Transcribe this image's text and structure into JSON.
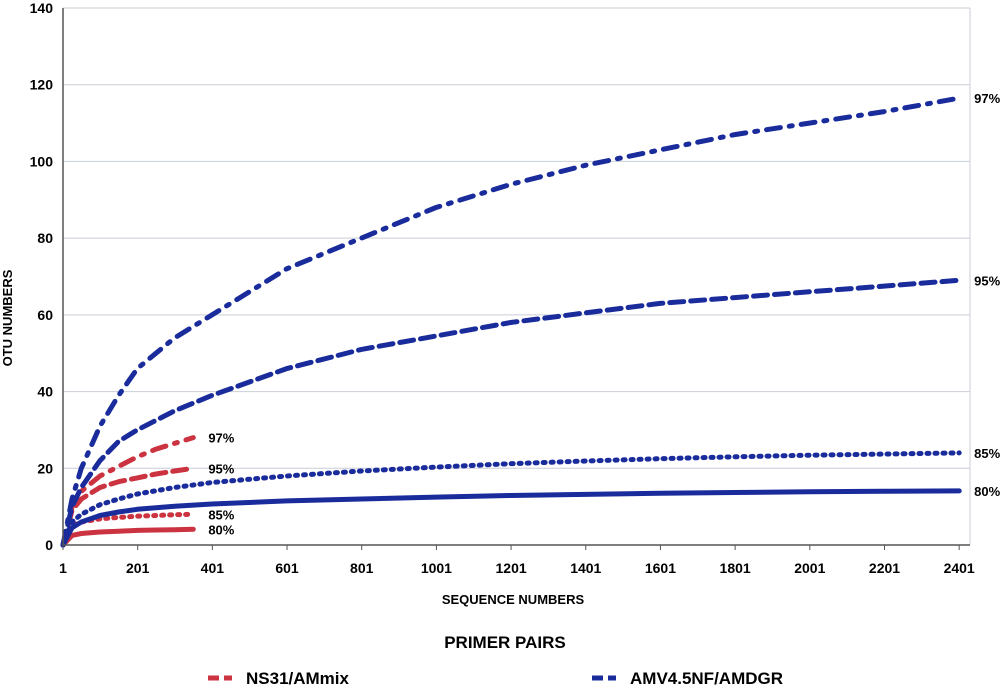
{
  "chart_data": {
    "type": "line",
    "xlabel": "SEQUENCE NUMBERS",
    "ylabel": "OTU NUMBERS",
    "xlim": [
      1,
      2430
    ],
    "ylim": [
      0,
      140
    ],
    "x_ticks": [
      1,
      201,
      401,
      601,
      801,
      1001,
      1201,
      1401,
      1601,
      1801,
      2001,
      2201,
      2401
    ],
    "y_ticks": [
      0,
      20,
      40,
      60,
      80,
      100,
      120,
      140
    ],
    "grid": "horizontal",
    "legend": {
      "title": "PRIMER PAIRS",
      "placement": "bottom",
      "entries": [
        {
          "label": "NS31/AMmix",
          "color": "#cc3340"
        },
        {
          "label": "AMV4.5NF/AMDGR",
          "color": "#1a2c9c"
        }
      ]
    },
    "series": [
      {
        "group": "NS31/AMmix",
        "label": "97%",
        "color": "#cc3340",
        "dash": "dashdot",
        "x": [
          1,
          25,
          50,
          100,
          150,
          200,
          250,
          300,
          350
        ],
        "y": [
          0,
          10,
          14,
          18,
          20.5,
          23,
          25,
          26.5,
          28
        ]
      },
      {
        "group": "NS31/AMmix",
        "label": "95%",
        "color": "#cc3340",
        "dash": "dash",
        "x": [
          1,
          25,
          50,
          100,
          150,
          200,
          250,
          300,
          350
        ],
        "y": [
          0,
          9,
          12,
          15,
          16.5,
          17.5,
          18.5,
          19.3,
          20
        ]
      },
      {
        "group": "NS31/AMmix",
        "label": "85%",
        "color": "#cc3340",
        "dash": "dot",
        "x": [
          1,
          25,
          50,
          100,
          150,
          200,
          250,
          300,
          350
        ],
        "y": [
          0,
          5,
          6,
          6.8,
          7.2,
          7.5,
          7.7,
          7.9,
          8
        ]
      },
      {
        "group": "NS31/AMmix",
        "label": "80%",
        "color": "#cc3340",
        "dash": "solid",
        "x": [
          1,
          25,
          50,
          100,
          150,
          200,
          250,
          300,
          350
        ],
        "y": [
          0,
          2.5,
          3,
          3.4,
          3.6,
          3.8,
          3.9,
          4,
          4.1
        ]
      },
      {
        "group": "AMV4.5NF/AMDGR",
        "label": "97%",
        "color": "#1a2c9c",
        "dash": "dashdot",
        "x": [
          1,
          25,
          50,
          100,
          150,
          200,
          300,
          400,
          600,
          800,
          1000,
          1200,
          1400,
          1600,
          1800,
          2000,
          2200,
          2401
        ],
        "y": [
          0,
          12,
          20,
          31,
          39,
          46,
          54,
          60,
          72,
          80,
          88,
          94,
          99,
          103,
          107,
          110,
          113,
          116.5
        ]
      },
      {
        "group": "AMV4.5NF/AMDGR",
        "label": "95%",
        "color": "#1a2c9c",
        "dash": "dash",
        "x": [
          1,
          25,
          50,
          100,
          150,
          200,
          300,
          400,
          600,
          800,
          1000,
          1200,
          1400,
          1600,
          1800,
          2000,
          2200,
          2401
        ],
        "y": [
          0,
          10,
          15,
          22,
          27,
          30,
          35,
          39,
          46,
          51,
          54.5,
          58,
          60.5,
          63,
          64.5,
          66,
          67.5,
          69
        ]
      },
      {
        "group": "AMV4.5NF/AMDGR",
        "label": "85%",
        "color": "#1a2c9c",
        "dash": "dot",
        "x": [
          1,
          25,
          50,
          100,
          150,
          200,
          300,
          400,
          600,
          800,
          1000,
          1200,
          1400,
          1600,
          1800,
          2000,
          2200,
          2401
        ],
        "y": [
          0,
          6,
          8,
          10.5,
          12,
          13.3,
          15,
          16.3,
          18,
          19.3,
          20.3,
          21.2,
          21.9,
          22.5,
          23,
          23.4,
          23.7,
          24
        ]
      },
      {
        "group": "AMV4.5NF/AMDGR",
        "label": "80%",
        "color": "#1a2c9c",
        "dash": "solid",
        "x": [
          1,
          25,
          50,
          100,
          150,
          200,
          300,
          400,
          600,
          800,
          1000,
          1200,
          1400,
          1600,
          1800,
          2000,
          2200,
          2401
        ],
        "y": [
          0,
          4.5,
          6,
          7.7,
          8.6,
          9.3,
          10.1,
          10.7,
          11.5,
          12,
          12.5,
          12.9,
          13.2,
          13.5,
          13.7,
          13.9,
          14,
          14.1
        ]
      }
    ]
  }
}
